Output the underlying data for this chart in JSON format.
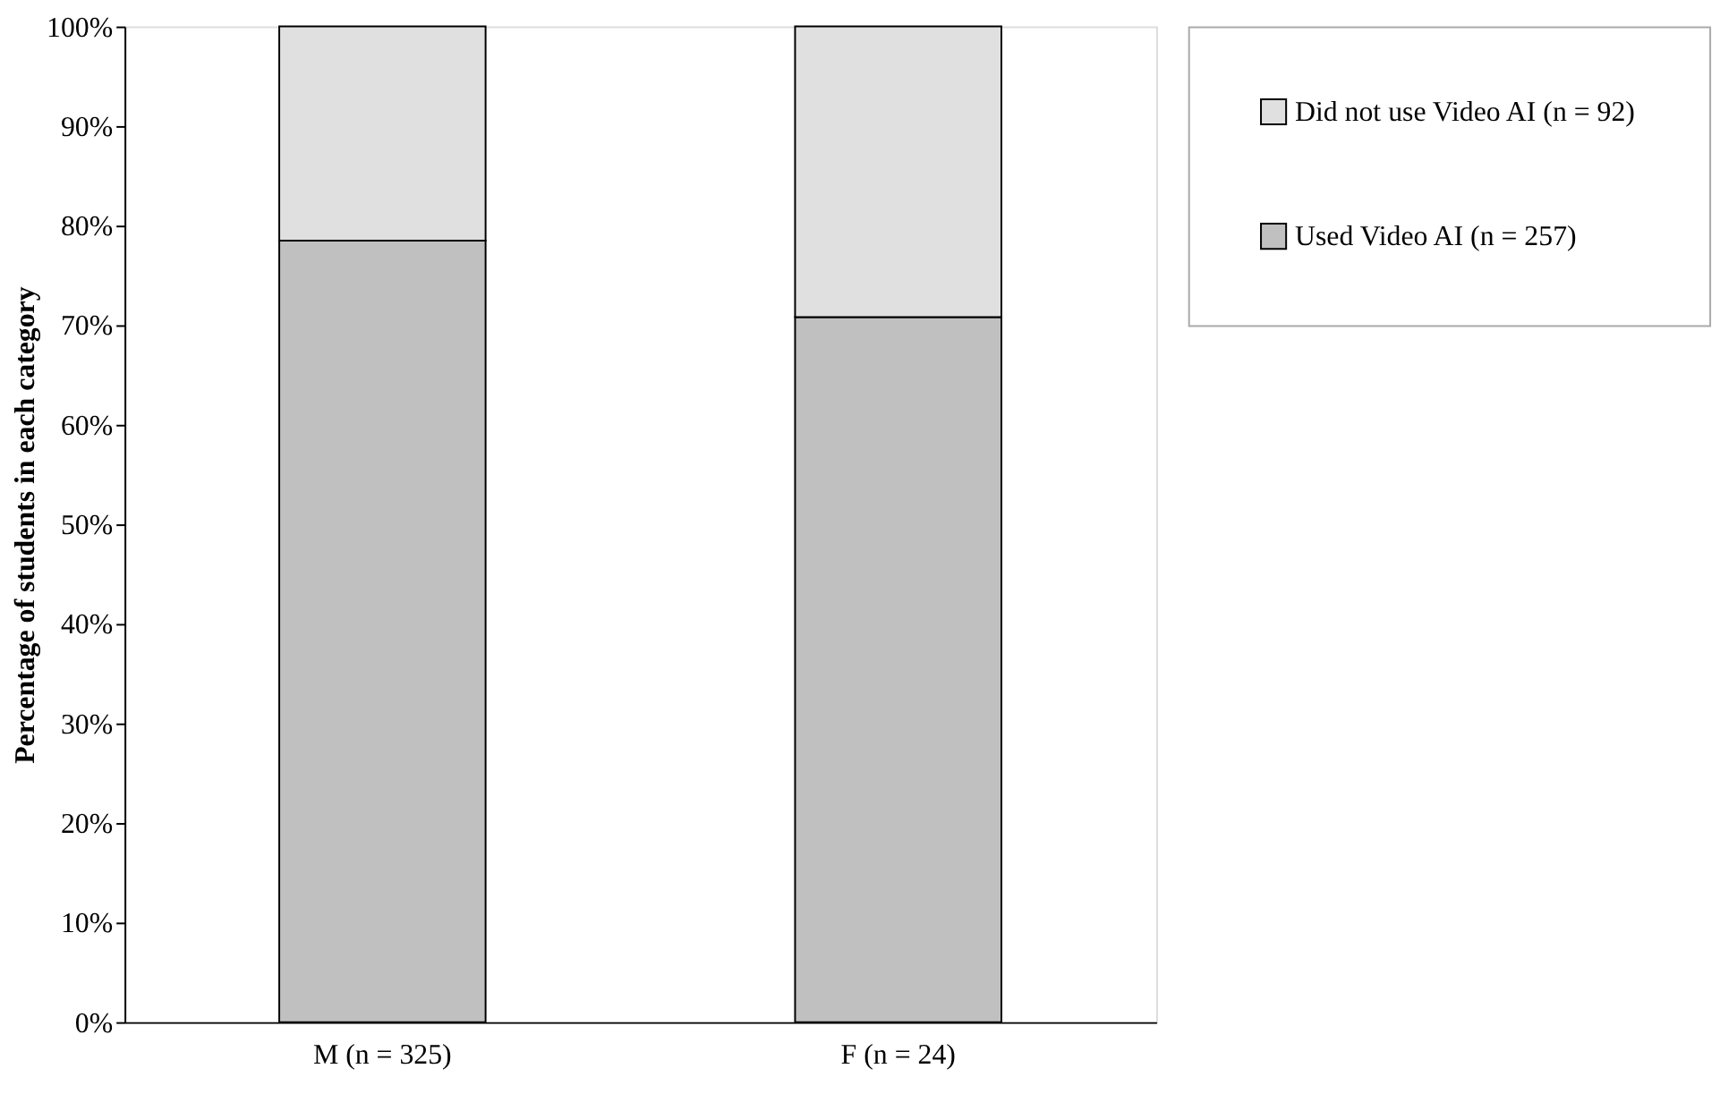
{
  "chart_data": {
    "type": "bar",
    "stacked": true,
    "ylabel": "Percentage of students in each category",
    "categories": [
      "M (n = 325)",
      "F (n = 24)"
    ],
    "series": [
      {
        "name": "Used Video AI (n = 257)",
        "color": "#c0c0c0",
        "values": [
          78.5,
          70.8
        ]
      },
      {
        "name": "Did not use Video AI (n = 92)",
        "color": "#e0e0e0",
        "values": [
          21.5,
          29.2
        ]
      }
    ],
    "ylim": [
      0,
      100
    ],
    "yticks": [
      {
        "value": 0,
        "label": "0%"
      },
      {
        "value": 10,
        "label": "10%"
      },
      {
        "value": 20,
        "label": "20%"
      },
      {
        "value": 30,
        "label": "30%"
      },
      {
        "value": 40,
        "label": "40%"
      },
      {
        "value": 50,
        "label": "50%"
      },
      {
        "value": 60,
        "label": "60%"
      },
      {
        "value": 70,
        "label": "70%"
      },
      {
        "value": 80,
        "label": "80%"
      },
      {
        "value": 90,
        "label": "90%"
      },
      {
        "value": 100,
        "label": "100%"
      }
    ],
    "grid": false,
    "legend": "right"
  }
}
